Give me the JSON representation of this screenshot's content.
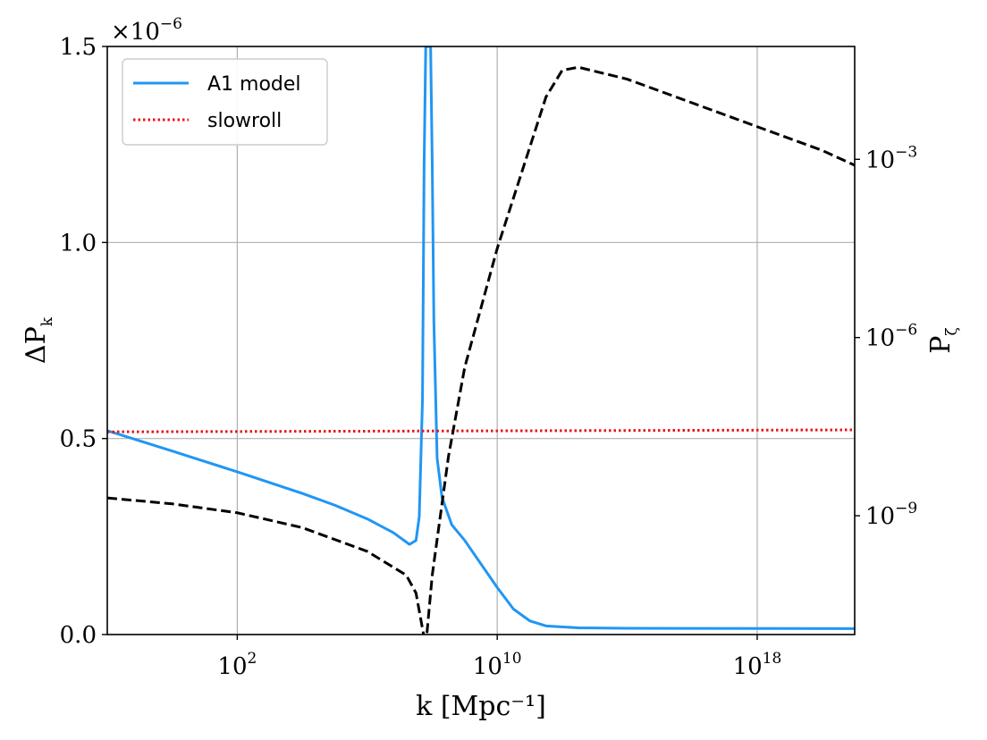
{
  "chart_data": {
    "type": "line",
    "title": "",
    "xlabel": "k [Mpc⁻¹]",
    "ylabel_left": "ΔP",
    "ylabel_left_sub": "k",
    "ylabel_right": "P",
    "ylabel_right_sub": "ζ",
    "x_scale": "log10",
    "x_range_log10": [
      -2,
      21
    ],
    "x_ticks": [
      {
        "log10": 2,
        "base": "10",
        "exp": "2"
      },
      {
        "log10": 10,
        "base": "10",
        "exp": "10"
      },
      {
        "log10": 18,
        "base": "10",
        "exp": "18"
      }
    ],
    "ylim_left": [
      0,
      1.5
    ],
    "left_scale_label": {
      "base": "×10",
      "exp": "−6"
    },
    "y_ticks_left": [
      {
        "value": 0.0,
        "label": "0.0"
      },
      {
        "value": 0.5,
        "label": "0.5"
      },
      {
        "value": 1.0,
        "label": "1.0"
      },
      {
        "value": 1.5,
        "label": "1.5"
      }
    ],
    "y_right_scale": "log10",
    "y_right_range_log10": [
      -11.0,
      -1.1
    ],
    "y_ticks_right": [
      {
        "log10": -3,
        "base": "10",
        "exp": "−3"
      },
      {
        "log10": -6,
        "base": "10",
        "exp": "−6"
      },
      {
        "log10": -9,
        "base": "10",
        "exp": "−9"
      }
    ],
    "grid": true,
    "legend": {
      "position": "top-left",
      "entries": [
        {
          "label": "A1 model",
          "color": "#2196f3",
          "style": "solid"
        },
        {
          "label": "slowroll",
          "color": "#e8151b",
          "style": "dotted"
        }
      ]
    },
    "series": [
      {
        "name": "A1 model",
        "axis": "left",
        "color": "#2196f3",
        "style": "solid",
        "points": [
          [
            -2,
            0.52
          ],
          [
            0,
            0.468
          ],
          [
            2,
            0.415
          ],
          [
            4,
            0.36
          ],
          [
            5,
            0.33
          ],
          [
            6,
            0.295
          ],
          [
            6.8,
            0.26
          ],
          [
            7.3,
            0.23
          ],
          [
            7.5,
            0.24
          ],
          [
            7.6,
            0.3
          ],
          [
            7.7,
            0.6
          ],
          [
            7.75,
            1.2
          ],
          [
            7.8,
            1.5
          ],
          [
            7.95,
            1.5
          ],
          [
            8.0,
            1.2
          ],
          [
            8.05,
            0.8
          ],
          [
            8.15,
            0.45
          ],
          [
            8.3,
            0.35
          ],
          [
            8.6,
            0.28
          ],
          [
            9.0,
            0.24
          ],
          [
            9.5,
            0.18
          ],
          [
            10.0,
            0.12
          ],
          [
            10.5,
            0.065
          ],
          [
            11.0,
            0.035
          ],
          [
            11.5,
            0.022
          ],
          [
            12.5,
            0.017
          ],
          [
            14,
            0.016
          ],
          [
            21,
            0.015
          ]
        ]
      },
      {
        "name": "slowroll",
        "axis": "left",
        "color": "#e8151b",
        "style": "dotted",
        "points": [
          [
            -2,
            0.517
          ],
          [
            21,
            0.522
          ]
        ]
      },
      {
        "name": "P_zeta",
        "axis": "right",
        "color": "#000000",
        "style": "dashed",
        "points": [
          [
            -2,
            -8.7
          ],
          [
            0,
            -8.8
          ],
          [
            2,
            -8.95
          ],
          [
            4,
            -9.2
          ],
          [
            6,
            -9.6
          ],
          [
            7.2,
            -10.0
          ],
          [
            7.5,
            -10.3
          ],
          [
            7.7,
            -10.9
          ],
          [
            7.8,
            -11.2
          ],
          [
            8.0,
            -10.0
          ],
          [
            8.5,
            -8.0
          ],
          [
            9.0,
            -6.5
          ],
          [
            10.0,
            -4.5
          ],
          [
            11.0,
            -2.8
          ],
          [
            11.5,
            -1.95
          ],
          [
            12.0,
            -1.5
          ],
          [
            12.5,
            -1.45
          ],
          [
            14,
            -1.65
          ],
          [
            16,
            -2.05
          ],
          [
            18,
            -2.45
          ],
          [
            20,
            -2.85
          ],
          [
            21,
            -3.1
          ]
        ]
      }
    ]
  }
}
